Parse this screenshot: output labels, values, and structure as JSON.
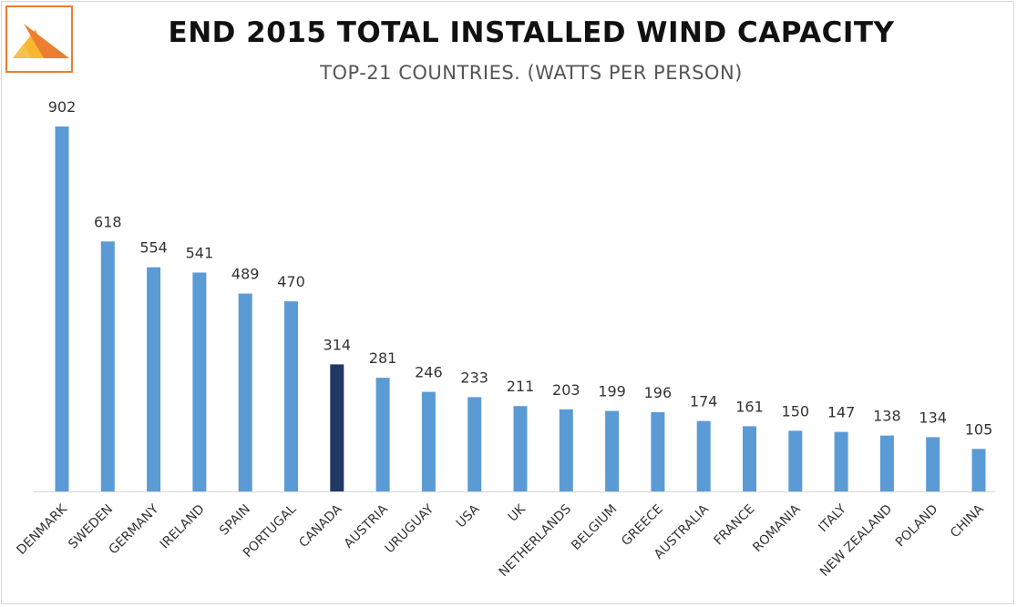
{
  "chart_data": {
    "type": "bar",
    "title": "END 2015 TOTAL INSTALLED WIND CAPACITY",
    "subtitle": "TOP-21 COUNTRIES. (WATTS PER PERSON)",
    "xlabel": "",
    "ylabel": "",
    "categories": [
      "DENMARK",
      "SWEDEN",
      "GERMANY",
      "IRELAND",
      "SPAIN",
      "PORTUGAL",
      "CANADA",
      "AUSTRIA",
      "URUGUAY",
      "USA",
      "UK",
      "NETHERLANDS",
      "BELGIUM",
      "GREECE",
      "AUSTRALIA",
      "FRANCE",
      "ROMANIA",
      "ITALY",
      "NEW ZEALAND",
      "POLAND",
      "CHINA"
    ],
    "values": [
      902,
      618,
      554,
      541,
      489,
      470,
      314,
      281,
      246,
      233,
      211,
      203,
      199,
      196,
      174,
      161,
      150,
      147,
      138,
      134,
      105
    ],
    "highlight": "CANADA",
    "ylim": [
      0,
      902
    ],
    "grid": false,
    "legend": "none",
    "colors": {
      "bar": "#5b9bd5",
      "highlight": "#1f3864",
      "label": "#333333",
      "axis": "#d9d9d9"
    }
  },
  "logo": {
    "name": "triangle-logo-icon",
    "colors": [
      "#f5a623",
      "#ed7d31"
    ]
  }
}
